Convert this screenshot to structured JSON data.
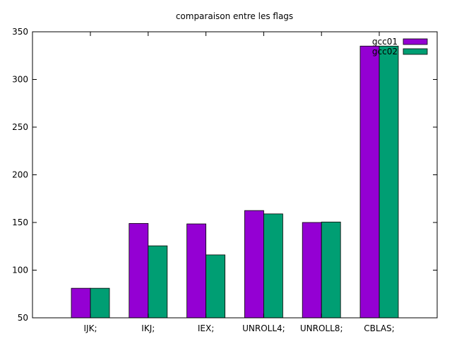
{
  "chart_data": {
    "type": "bar",
    "title": "comparaison entre les flags",
    "xlabel": "",
    "ylabel": "",
    "categories": [
      "IJK;",
      "IKJ;",
      "IEX;",
      "UNROLL4;",
      "UNROLL8;",
      "CBLAS;"
    ],
    "series": [
      {
        "name": "gcc01",
        "color": "#9400d3",
        "values": [
          81,
          149,
          148.5,
          162.5,
          150,
          335
        ]
      },
      {
        "name": "gcc02",
        "color": "#009e73",
        "values": [
          81,
          125.5,
          116,
          159,
          150.5,
          335
        ]
      }
    ],
    "ylim": [
      50,
      350
    ],
    "yticks": [
      50,
      100,
      150,
      200,
      250,
      300,
      350
    ],
    "grid": false,
    "legend_position": "top-right"
  }
}
